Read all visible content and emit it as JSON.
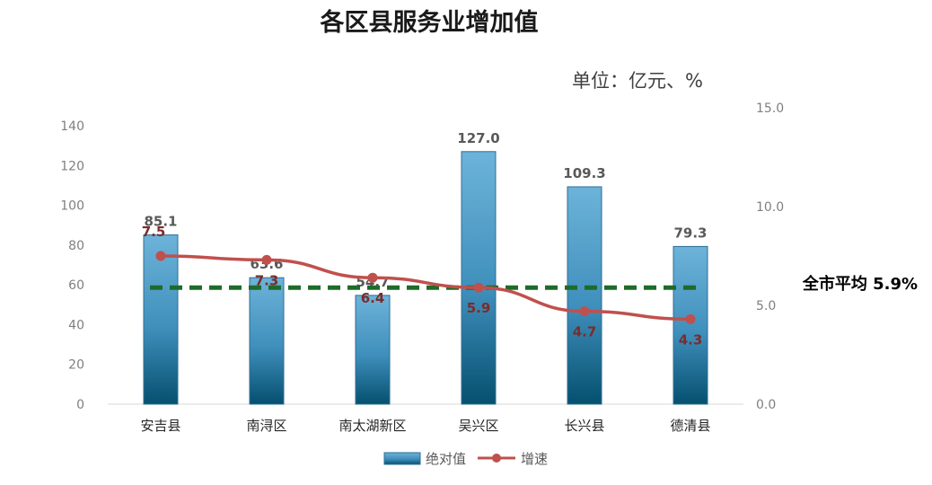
{
  "chart_data": {
    "type": "bar",
    "title": "各区县服务业增加值",
    "unit_note": "单位：亿元、%",
    "categories": [
      "安吉县",
      "南浔区",
      "南太湖新区",
      "吴兴区",
      "长兴县",
      "德清县"
    ],
    "series": [
      {
        "name": "绝对值",
        "type": "bar",
        "axis": "left",
        "values": [
          85.1,
          63.6,
          54.7,
          127.0,
          109.3,
          79.3
        ],
        "labels": [
          "85.1",
          "63.6",
          "54.7",
          "127.0",
          "109.3",
          "79.3"
        ],
        "color": "#3a8fbd"
      },
      {
        "name": "增速",
        "type": "line",
        "axis": "right",
        "values": [
          7.5,
          7.3,
          6.4,
          5.9,
          4.7,
          4.3
        ],
        "labels": [
          "7.5",
          "7.3",
          "6.4",
          "5.9",
          "4.7",
          "4.3"
        ],
        "color": "#c0504d"
      }
    ],
    "reference_line": {
      "label": "全市平均 5.9%",
      "value": 5.9,
      "axis": "right",
      "color": "#1e6b2a",
      "style": "dashed"
    },
    "ylim_left": [
      0,
      140
    ],
    "yticks_left": [
      "0",
      "20",
      "40",
      "60",
      "80",
      "100",
      "120",
      "140"
    ],
    "ylim_right": [
      0,
      15
    ],
    "yticks_right": [
      "0.0",
      "5.0",
      "10.0",
      "15.0"
    ],
    "legend_position": "bottom",
    "grid": false
  }
}
